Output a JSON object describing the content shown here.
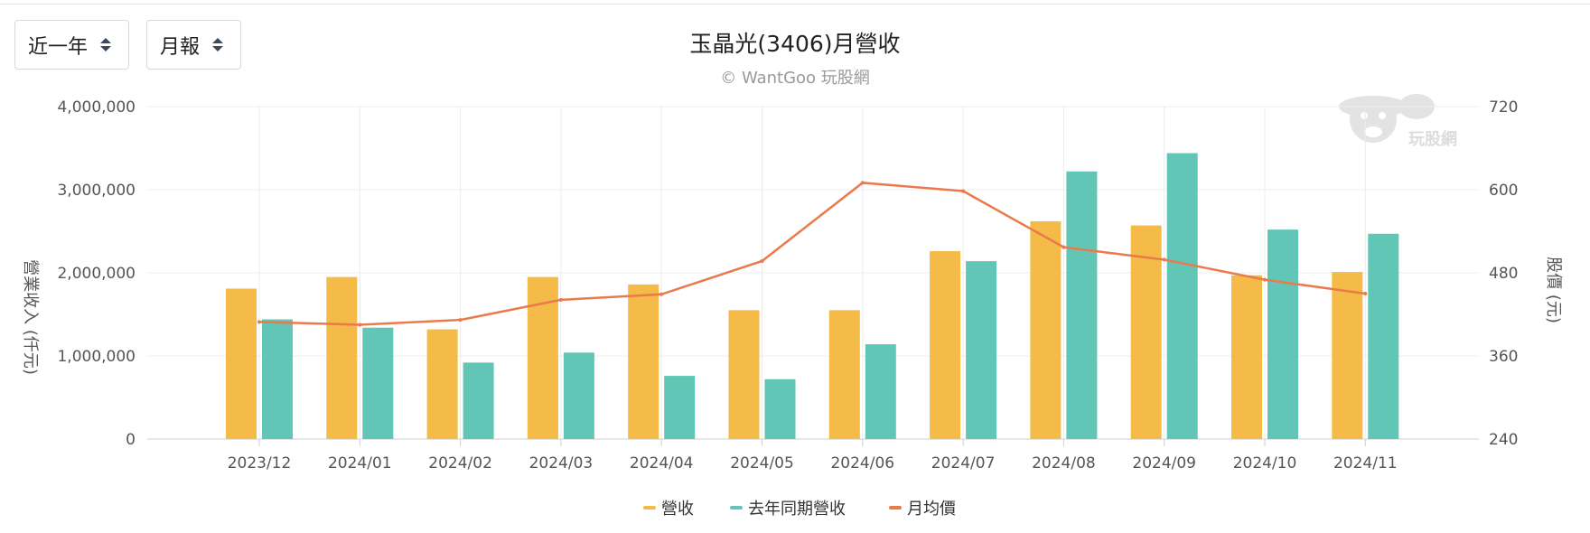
{
  "controls": {
    "period": "近一年",
    "frequency": "月報"
  },
  "watermark": {
    "text": "玩股網"
  },
  "colors": {
    "revenue": "#F4BB48",
    "last_year": "#61C6B5",
    "price": "#EA7A4B",
    "grid": "#ececec"
  },
  "chart_data": {
    "type": "bar",
    "title": "玉晶光(3406)月營收",
    "subtitle": "© WantGoo 玩股網",
    "categories": [
      "2023/12",
      "2024/01",
      "2024/02",
      "2024/03",
      "2024/04",
      "2024/05",
      "2024/06",
      "2024/07",
      "2024/08",
      "2024/09",
      "2024/10",
      "2024/11"
    ],
    "series": [
      {
        "name": "營收",
        "type": "bar",
        "axis": "left",
        "values": [
          1810000,
          1950000,
          1320000,
          1950000,
          1860000,
          1550000,
          1550000,
          2260000,
          2620000,
          2570000,
          1970000,
          2010000
        ]
      },
      {
        "name": "去年同期營收",
        "type": "bar",
        "axis": "left",
        "values": [
          1440000,
          1340000,
          920000,
          1040000,
          760000,
          720000,
          1140000,
          2140000,
          3220000,
          3440000,
          2520000,
          2470000
        ]
      },
      {
        "name": "月均價",
        "type": "line",
        "axis": "right",
        "values": [
          409,
          405,
          412,
          441,
          449,
          497,
          610,
          598,
          517,
          499,
          470,
          450
        ]
      }
    ],
    "y_left": {
      "label": "營業收入 (仟元)",
      "min": 0,
      "max": 4000000,
      "ticks": [
        "0",
        "1,000,000",
        "2,000,000",
        "3,000,000",
        "4,000,000"
      ]
    },
    "y_right": {
      "label": "股價 (元)",
      "min": 240,
      "max": 720,
      "ticks": [
        "240",
        "360",
        "480",
        "600",
        "720"
      ]
    },
    "legend_position": "bottom-center",
    "grid": true
  }
}
